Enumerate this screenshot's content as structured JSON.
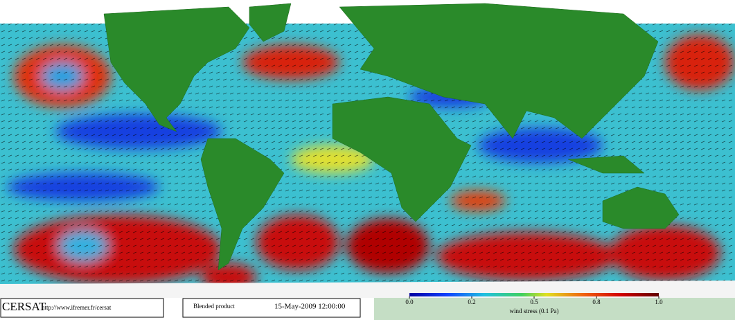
{
  "footer": {
    "brand": "CERSAT",
    "url": "http://www.ifremer.fr/cersat",
    "product": "Blended product",
    "date": "15-May-2009 12:00:00"
  },
  "colorbar": {
    "label": "wind stress (0.1 Pa)",
    "ticks": [
      {
        "value": 0,
        "label": "0.0"
      },
      {
        "value": 0.2,
        "label": "0.2"
      },
      {
        "value": 0.5,
        "label": "0.5"
      },
      {
        "value": 0.8,
        "label": "0.8"
      },
      {
        "value": 1,
        "label": "1.0"
      }
    ]
  }
}
